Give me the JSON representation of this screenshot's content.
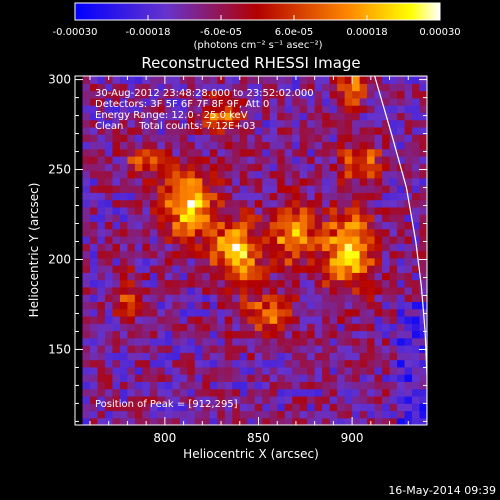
{
  "chart_data": {
    "type": "heatmap",
    "title": "Reconstructed RHESSI Image",
    "xlabel": "Heliocentric X (arcsec)",
    "ylabel": "Heliocentric Y (arcsec)",
    "xlim": [
      752,
      940
    ],
    "ylim": [
      108,
      302
    ],
    "xticks": [
      {
        "value": 800,
        "label": "800"
      },
      {
        "value": 850,
        "label": "850"
      },
      {
        "value": 900,
        "label": "900"
      }
    ],
    "yticks": [
      {
        "value": 150,
        "label": "150"
      },
      {
        "value": 200,
        "label": "200"
      },
      {
        "value": 250,
        "label": "250"
      },
      {
        "value": 300,
        "label": "300"
      }
    ],
    "colorbar": {
      "range": [
        -0.0003,
        0.0003
      ],
      "tick_values": [
        -0.0003,
        -0.00018,
        -6e-05,
        6e-05,
        0.00018,
        0.0003
      ],
      "tick_labels": [
        "-0.00030",
        "-0.00018",
        "-6.0e-05",
        "6.0e-05",
        "0.00018",
        "0.00030"
      ],
      "units_label": "(photons cm⁻² s⁻¹ asec⁻²)"
    },
    "annotations": [
      "30-Aug-2012 23:48:28.000 to 23:52:02.000",
      "Detectors: 3F 5F 6F 7F 8F 9F, Att 0",
      "Energy Range: 12.0 - 25.0 keV",
      "Clean     Total counts: 7.12E+03"
    ],
    "peak_label": "Position of Peak = [912,295]",
    "limb_points": [
      [
        912,
        302
      ],
      [
        921,
        270
      ],
      [
        929,
        240
      ],
      [
        934,
        210
      ],
      [
        937,
        185
      ],
      [
        939,
        160
      ],
      [
        940,
        135
      ],
      [
        940,
        110
      ]
    ],
    "grid_x": [
      756,
      940
    ],
    "grid_y": [
      108,
      302
    ],
    "grid_cols": 46,
    "grid_rows": 48,
    "seed": 7,
    "sources": [
      {
        "x": 812,
        "y": 232,
        "sx": 10,
        "sy": 14,
        "a": 1.0
      },
      {
        "x": 838,
        "y": 205,
        "sx": 9,
        "sy": 12,
        "a": 1.0
      },
      {
        "x": 868,
        "y": 215,
        "sx": 8,
        "sy": 12,
        "a": 0.85
      },
      {
        "x": 898,
        "y": 205,
        "sx": 10,
        "sy": 16,
        "a": 1.0
      },
      {
        "x": 830,
        "y": 280,
        "sx": 8,
        "sy": 8,
        "a": 0.65
      },
      {
        "x": 905,
        "y": 255,
        "sx": 8,
        "sy": 8,
        "a": 0.7
      },
      {
        "x": 855,
        "y": 170,
        "sx": 10,
        "sy": 10,
        "a": 0.6
      },
      {
        "x": 900,
        "y": 295,
        "sx": 6,
        "sy": 6,
        "a": 0.8
      },
      {
        "x": 788,
        "y": 255,
        "sx": 6,
        "sy": 6,
        "a": 0.6
      },
      {
        "x": 780,
        "y": 180,
        "sx": 6,
        "sy": 10,
        "a": 0.45
      }
    ],
    "noise_amp": 0.55,
    "footer_date": "16-May-2014 09:39",
    "colormap": [
      "#0000ff",
      "#6633cc",
      "#b30000",
      "#ff8800",
      "#ffff00",
      "#ffffff"
    ]
  }
}
